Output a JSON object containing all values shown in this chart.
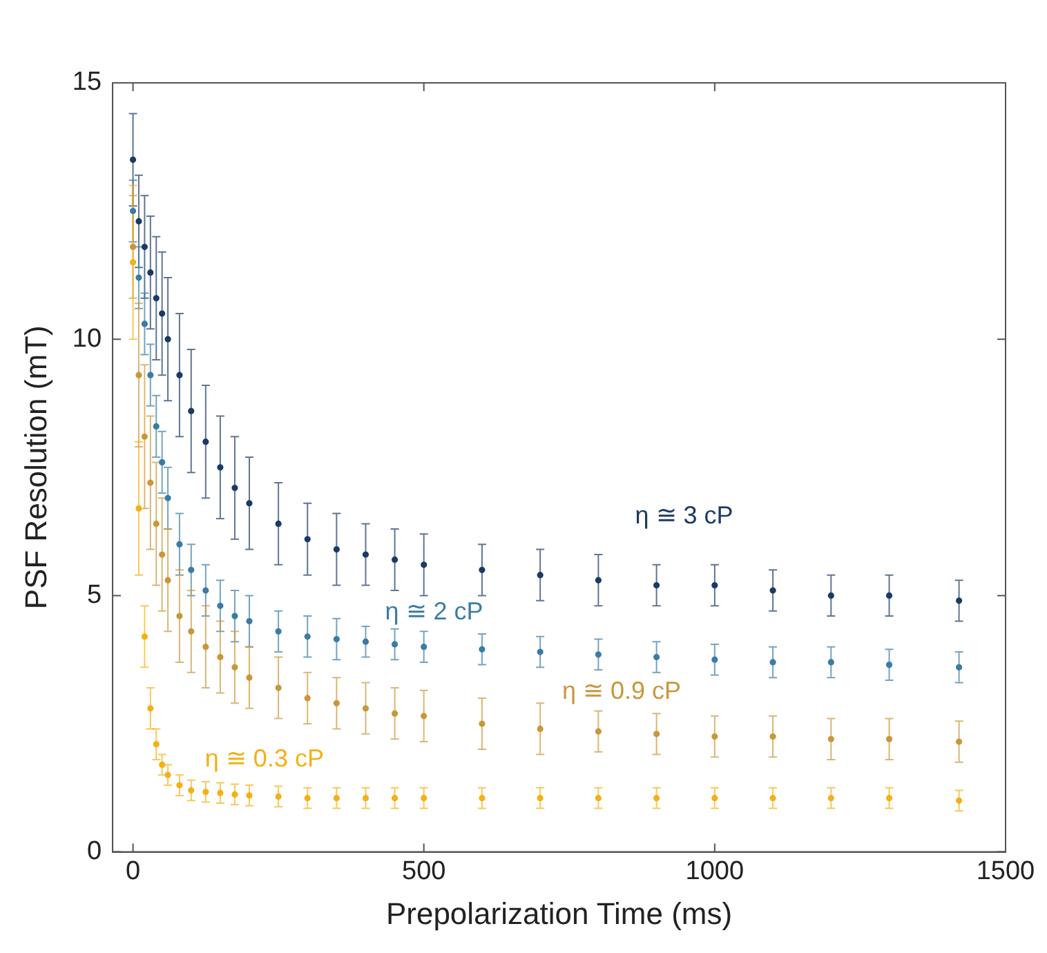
{
  "chart_data": {
    "type": "scatter",
    "xlabel": "Prepolarization Time (ms)",
    "ylabel": "PSF Resolution (mT)",
    "xlim": [
      -35,
      1500
    ],
    "ylim": [
      0,
      15
    ],
    "xticks": [
      0,
      500,
      1000,
      1500
    ],
    "yticks": [
      0,
      5,
      10,
      15
    ],
    "grid": false,
    "legend": false,
    "marker": "circle",
    "x": [
      0,
      10,
      20,
      30,
      40,
      50,
      60,
      80,
      100,
      125,
      150,
      175,
      200,
      250,
      300,
      350,
      400,
      450,
      500,
      600,
      700,
      800,
      900,
      1000,
      1100,
      1200,
      1300,
      1420
    ],
    "series": [
      {
        "name": "η ≅ 3 cP",
        "color": "#1b3a66",
        "values": [
          13.5,
          12.3,
          11.8,
          11.3,
          10.8,
          10.5,
          10.0,
          9.3,
          8.6,
          8.0,
          7.5,
          7.1,
          6.8,
          6.4,
          6.1,
          5.9,
          5.8,
          5.7,
          5.6,
          5.5,
          5.4,
          5.3,
          5.2,
          5.2,
          5.1,
          5.0,
          5.0,
          4.9
        ],
        "errors": [
          0.9,
          0.9,
          1.0,
          1.1,
          1.2,
          1.2,
          1.2,
          1.2,
          1.2,
          1.1,
          1.0,
          1.0,
          0.9,
          0.8,
          0.7,
          0.7,
          0.6,
          0.6,
          0.6,
          0.5,
          0.5,
          0.5,
          0.4,
          0.4,
          0.4,
          0.4,
          0.4,
          0.4
        ]
      },
      {
        "name": "η ≅ 2 cP",
        "color": "#3a7ca5",
        "values": [
          12.5,
          11.2,
          10.3,
          9.3,
          8.3,
          7.6,
          6.9,
          6.0,
          5.5,
          5.1,
          4.8,
          4.6,
          4.5,
          4.3,
          4.2,
          4.15,
          4.1,
          4.05,
          4.0,
          3.95,
          3.9,
          3.85,
          3.8,
          3.75,
          3.7,
          3.7,
          3.65,
          3.6
        ],
        "errors": [
          0.6,
          0.6,
          0.6,
          0.6,
          0.6,
          0.6,
          0.6,
          0.6,
          0.5,
          0.5,
          0.5,
          0.5,
          0.5,
          0.4,
          0.4,
          0.4,
          0.3,
          0.3,
          0.3,
          0.3,
          0.3,
          0.3,
          0.3,
          0.3,
          0.3,
          0.3,
          0.3,
          0.3
        ]
      },
      {
        "name": "η ≅ 0.9 cP",
        "color": "#c9973a",
        "values": [
          11.8,
          9.3,
          8.1,
          7.2,
          6.4,
          5.8,
          5.3,
          4.6,
          4.3,
          4.0,
          3.8,
          3.6,
          3.4,
          3.2,
          3.0,
          2.9,
          2.8,
          2.7,
          2.65,
          2.5,
          2.4,
          2.35,
          2.3,
          2.25,
          2.25,
          2.2,
          2.2,
          2.15
        ],
        "errors": [
          1.0,
          1.4,
          1.4,
          1.3,
          1.2,
          1.1,
          1.0,
          0.9,
          0.8,
          0.8,
          0.7,
          0.7,
          0.6,
          0.6,
          0.5,
          0.5,
          0.5,
          0.5,
          0.5,
          0.5,
          0.5,
          0.4,
          0.4,
          0.4,
          0.4,
          0.4,
          0.4,
          0.4
        ]
      },
      {
        "name": "η ≅ 0.3 cP",
        "color": "#f5b015",
        "values": [
          11.5,
          6.7,
          4.2,
          2.8,
          2.1,
          1.7,
          1.5,
          1.3,
          1.2,
          1.17,
          1.15,
          1.12,
          1.1,
          1.08,
          1.05,
          1.05,
          1.05,
          1.05,
          1.05,
          1.05,
          1.05,
          1.05,
          1.05,
          1.05,
          1.05,
          1.05,
          1.05,
          1.0
        ],
        "errors": [
          1.5,
          1.3,
          0.6,
          0.4,
          0.3,
          0.2,
          0.2,
          0.2,
          0.2,
          0.2,
          0.2,
          0.2,
          0.2,
          0.2,
          0.2,
          0.2,
          0.2,
          0.2,
          0.2,
          0.2,
          0.2,
          0.2,
          0.2,
          0.2,
          0.2,
          0.2,
          0.2,
          0.2
        ]
      }
    ]
  }
}
